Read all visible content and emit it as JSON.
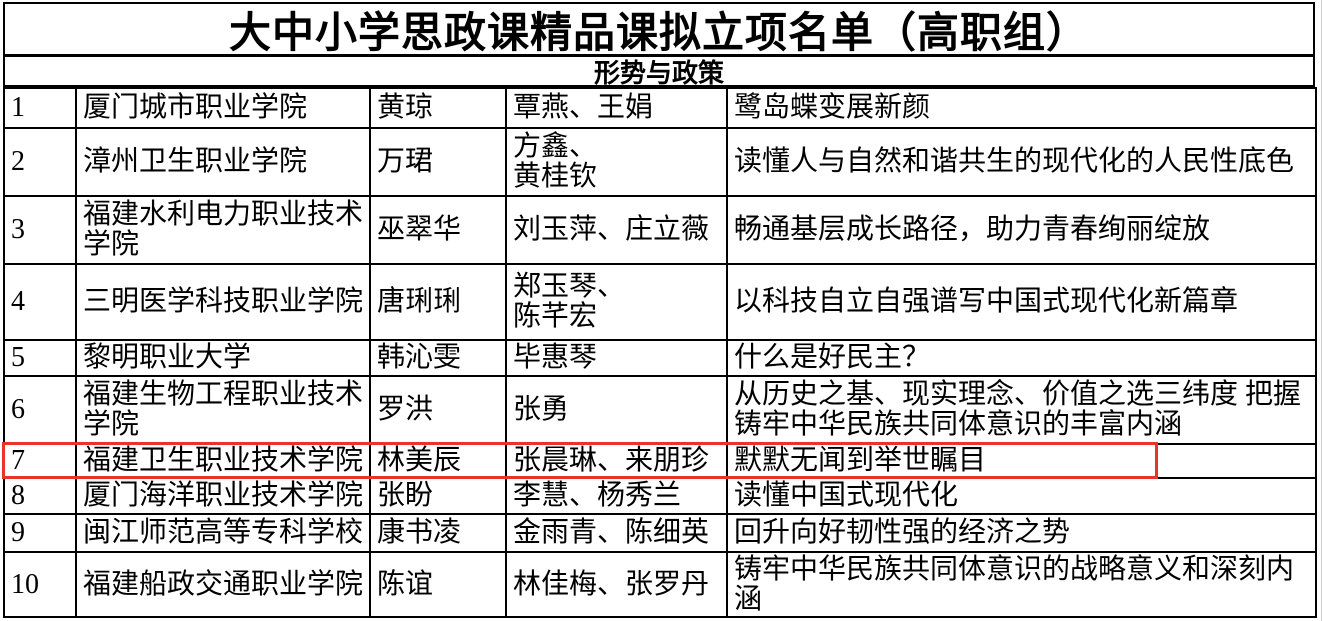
{
  "title": "大中小学思政课精品课拟立项名单（高职组）",
  "section": "形势与政策",
  "highlight": {
    "row_num": "7",
    "color": "#e8352b"
  },
  "rows": [
    {
      "num": "1",
      "school": "厦门城市职业学院",
      "teacher": "黄琼",
      "co_teachers": "覃燕、王娟",
      "course": "鹭岛蝶变展新颜"
    },
    {
      "num": "2",
      "school": "漳州卫生职业学院",
      "teacher": "万珺",
      "co_teachers": "方鑫、\n黄桂钦",
      "course": "读懂人与自然和谐共生的现代化的人民性底色"
    },
    {
      "num": "3",
      "school": "福建水利电力职业技术学院",
      "teacher": "巫翠华",
      "co_teachers": "刘玉萍、庄立薇",
      "course": "畅通基层成长路径，助力青春绚丽绽放"
    },
    {
      "num": "4",
      "school": "三明医学科技职业学院",
      "teacher": "唐琍琍",
      "co_teachers": "郑玉琴、\n陈芊宏",
      "course": "以科技自立自强谱写中国式现代化新篇章"
    },
    {
      "num": "5",
      "school": "黎明职业大学",
      "teacher": "韩沁雯",
      "co_teachers": "毕惠琴",
      "course": "什么是好民主？"
    },
    {
      "num": "6",
      "school": "福建生物工程职业技术学院",
      "teacher": "罗洪",
      "co_teachers": "张勇",
      "course": "从历史之基、现实理念、价值之选三纬度 把握铸牢中华民族共同体意识的丰富内涵"
    },
    {
      "num": "7",
      "school": "福建卫生职业技术学院",
      "teacher": "林美辰",
      "co_teachers": "张晨琳、来朋珍",
      "course": "默默无闻到举世瞩目"
    },
    {
      "num": "8",
      "school": "厦门海洋职业技术学院",
      "teacher": "张盼",
      "co_teachers": "李慧、杨秀兰",
      "course": "读懂中国式现代化"
    },
    {
      "num": "9",
      "school": "闽江师范高等专科学校",
      "teacher": "康书凌",
      "co_teachers": "金雨青、陈细英",
      "course": "回升向好韧性强的经济之势"
    },
    {
      "num": "10",
      "school": "福建船政交通职业学院",
      "teacher": "陈谊",
      "co_teachers": "林佳梅、张罗丹",
      "course": "铸牢中华民族共同体意识的战略意义和深刻内涵"
    }
  ]
}
